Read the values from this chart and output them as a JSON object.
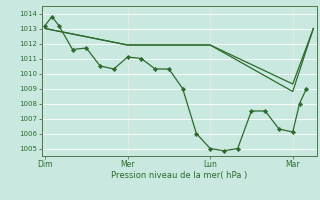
{
  "background_color": "#c8e8e0",
  "grid_color": "#ffffff",
  "line_color": "#2d6b2d",
  "marker_color": "#2d6b2d",
  "ylim": [
    1004.5,
    1014.5
  ],
  "yticks": [
    1005,
    1006,
    1007,
    1008,
    1009,
    1010,
    1011,
    1012,
    1013,
    1014
  ],
  "xlabel": "Pression niveau de la mer( hPa )",
  "xtick_labels": [
    "Dim",
    "Mer",
    "Lun",
    "Mar"
  ],
  "xtick_positions": [
    0,
    12,
    24,
    36
  ],
  "vline_positions": [
    0,
    12,
    24,
    36
  ],
  "xlim": [
    -0.5,
    39.5
  ],
  "series1_x": [
    0,
    1,
    2,
    4,
    6,
    8,
    10,
    12,
    14,
    16,
    18,
    20,
    22,
    24,
    26,
    28,
    30,
    32,
    34,
    36,
    37,
    38
  ],
  "series1_y": [
    1013.2,
    1013.8,
    1013.2,
    1011.6,
    1011.7,
    1010.5,
    1010.3,
    1011.1,
    1011.0,
    1010.3,
    1010.3,
    1009.0,
    1006.0,
    1005.0,
    1004.85,
    1005.0,
    1007.5,
    1007.5,
    1006.3,
    1006.1,
    1008.0,
    1009.0
  ],
  "series2_x": [
    0,
    12,
    24,
    36,
    39
  ],
  "series2_y": [
    1013.0,
    1011.9,
    1011.9,
    1008.8,
    1013.0
  ],
  "series3_x": [
    0,
    12,
    24,
    36,
    39
  ],
  "series3_y": [
    1013.0,
    1011.9,
    1011.9,
    1009.3,
    1013.0
  ],
  "total_x": 39
}
